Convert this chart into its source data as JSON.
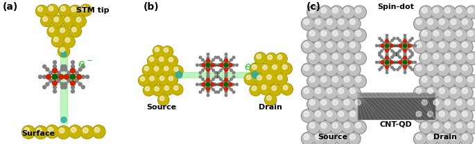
{
  "panel_labels": [
    "(a)",
    "(b)",
    "(c)"
  ],
  "panel_a_labels": [
    "STM tip",
    "e⁻",
    "Surface"
  ],
  "panel_b_labels": [
    "Source",
    "e⁻",
    "Drain"
  ],
  "panel_c_labels": [
    "Spin-dot",
    "CNT-QD",
    "Source",
    "Drain"
  ],
  "gold_color": "#c8b400",
  "gold_highlight": "#e8d840",
  "green_rod": "#90ee90",
  "bg_color": "#ffffff",
  "e_color": "#22cc22",
  "metal_color": "#006600",
  "oxy_color": "#cc2200",
  "carbon_color": "#808080",
  "electrode_color": "#b8b8b8",
  "cnt_color": "#707070",
  "figwidth": 6.85,
  "figheight": 2.08,
  "dpi": 100
}
